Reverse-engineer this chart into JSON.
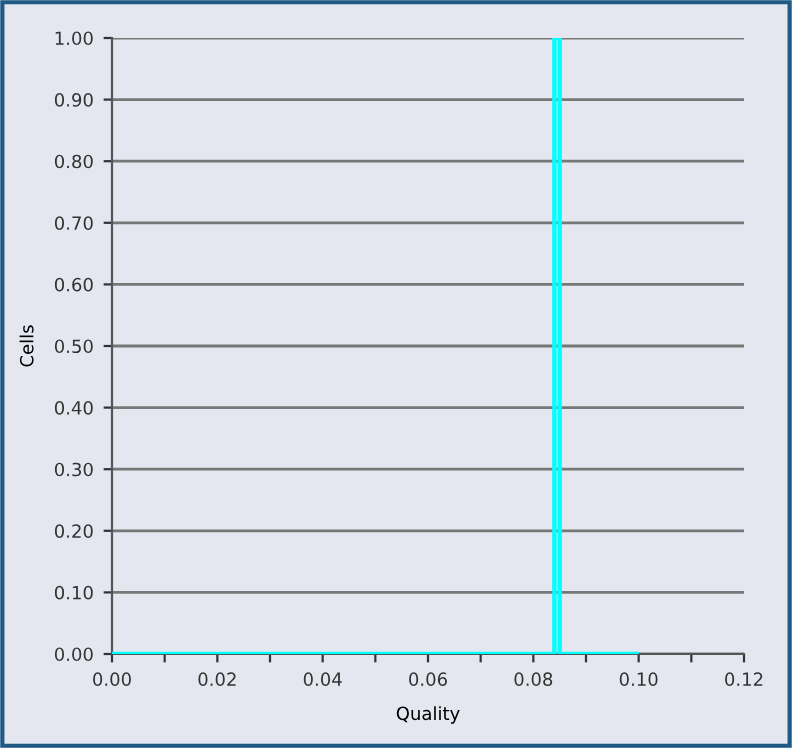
{
  "chart_data": {
    "type": "histogram",
    "xlabel": "Quality",
    "ylabel": "Cells",
    "bins": [
      0.0,
      0.084,
      0.085,
      0.1
    ],
    "values": [
      0,
      1,
      0
    ],
    "color": "#00ffff",
    "xlim": [
      0,
      0.12
    ],
    "ylim": [
      0,
      1
    ],
    "xticks": [
      {
        "value": 0,
        "label": "0.00"
      },
      {
        "value": 0.01,
        "label": null
      },
      {
        "value": 0.02,
        "label": "0.02"
      },
      {
        "value": 0.03,
        "label": null
      },
      {
        "value": 0.04,
        "label": "0.04"
      },
      {
        "value": 0.05,
        "label": null
      },
      {
        "value": 0.06,
        "label": "0.06"
      },
      {
        "value": 0.07,
        "label": null
      },
      {
        "value": 0.08,
        "label": "0.08"
      },
      {
        "value": 0.09,
        "label": null
      },
      {
        "value": 0.1,
        "label": "0.10"
      },
      {
        "value": 0.11,
        "label": null
      },
      {
        "value": 0.12,
        "label": "0.12"
      }
    ],
    "yticks": [
      {
        "value": 0,
        "label": "0.00"
      },
      {
        "value": 0.1,
        "label": "0.10"
      },
      {
        "value": 0.2,
        "label": "0.20"
      },
      {
        "value": 0.3,
        "label": "0.30"
      },
      {
        "value": 0.4,
        "label": "0.40"
      },
      {
        "value": 0.5,
        "label": "0.50"
      },
      {
        "value": 0.6,
        "label": "0.60"
      },
      {
        "value": 0.7,
        "label": "0.70"
      },
      {
        "value": 0.8,
        "label": "0.80"
      },
      {
        "value": 0.9,
        "label": "0.90"
      },
      {
        "value": 1,
        "label": "1.00"
      }
    ],
    "grid": "y"
  }
}
